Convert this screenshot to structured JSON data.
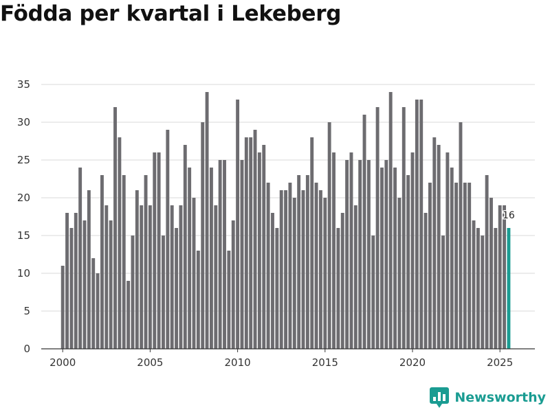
{
  "chart_data": {
    "type": "bar",
    "title": "Födda per kvartal i Lekeberg",
    "xlabel": "",
    "ylabel": "",
    "ylim": [
      0,
      35
    ],
    "yticks": [
      0,
      5,
      10,
      15,
      20,
      25,
      30,
      35
    ],
    "xticks": [
      2000,
      2005,
      2010,
      2015,
      2020,
      2025
    ],
    "grid": true,
    "first_quarter": "2000 Q1",
    "values": [
      11,
      18,
      16,
      18,
      24,
      17,
      21,
      12,
      10,
      23,
      19,
      17,
      32,
      28,
      23,
      9,
      15,
      21,
      19,
      23,
      19,
      26,
      26,
      15,
      29,
      19,
      16,
      19,
      27,
      24,
      20,
      13,
      30,
      34,
      24,
      19,
      25,
      25,
      13,
      17,
      33,
      25,
      28,
      28,
      29,
      26,
      27,
      22,
      18,
      16,
      21,
      21,
      22,
      20,
      23,
      21,
      23,
      28,
      22,
      21,
      20,
      30,
      26,
      16,
      18,
      25,
      26,
      19,
      25,
      31,
      25,
      15,
      32,
      24,
      25,
      34,
      24,
      20,
      32,
      23,
      26,
      33,
      33,
      18,
      22,
      28,
      27,
      15,
      26,
      24,
      22,
      30,
      22,
      22,
      17,
      16,
      15,
      23,
      20,
      16,
      19,
      19,
      16
    ],
    "highlight_last": true,
    "last_value_label": "16",
    "colors": {
      "bar": "#6d6c70",
      "highlight": "#1a9c92",
      "grid": "#d9d9d9",
      "axis": "#333333"
    }
  },
  "brand": {
    "name": "Newsworthy",
    "logo_icon": "bar-chart-logo-icon"
  }
}
